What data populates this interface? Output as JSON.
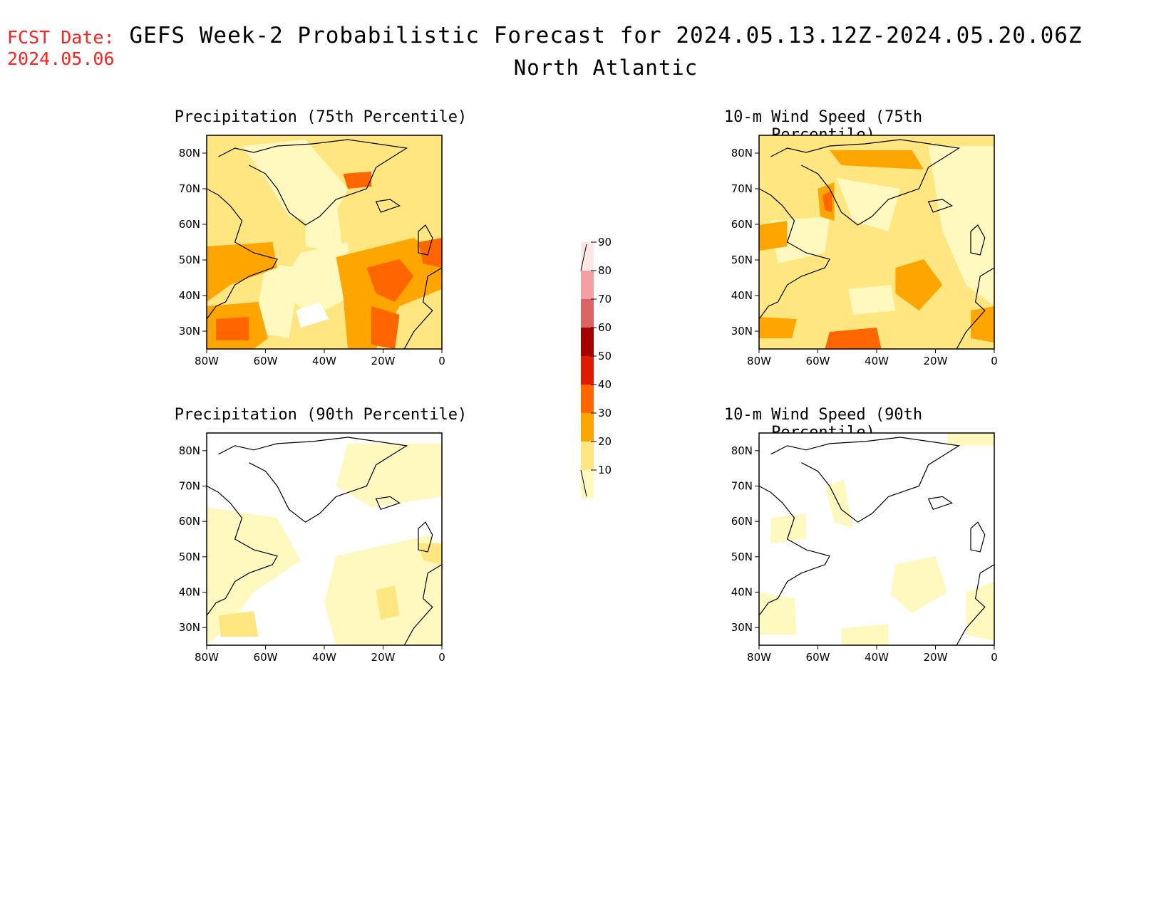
{
  "header": {
    "fcst_label": "FCST Date:",
    "fcst_date": "2024.05.06",
    "title": "GEFS Week-2 Probabilistic Forecast for 2024.05.13.12Z-2024.05.20.06Z",
    "region": "North Atlantic"
  },
  "panels": [
    {
      "title": "Precipitation (75th Percentile)",
      "field": "precip75"
    },
    {
      "title": "10-m Wind Speed (75th Percentile)",
      "field": "wind75"
    },
    {
      "title": "Precipitation (90th Percentile)",
      "field": "precip90"
    },
    {
      "title": "10-m Wind Speed (90th Percentile)",
      "field": "wind90"
    }
  ],
  "axes": {
    "lat_ticks": [
      "80N",
      "70N",
      "60N",
      "50N",
      "40N",
      "30N"
    ],
    "lon_ticks": [
      "80W",
      "60W",
      "40W",
      "20W",
      "0"
    ],
    "lat_values": [
      80,
      70,
      60,
      50,
      40,
      30
    ],
    "lon_values": [
      -80,
      -60,
      -40,
      -20,
      0
    ],
    "lat_range": [
      25,
      85
    ],
    "lon_range": [
      -80,
      0
    ]
  },
  "colorbar": {
    "levels": [
      10,
      20,
      30,
      40,
      50,
      60,
      70,
      80,
      90
    ],
    "labels": [
      "10",
      "20",
      "30",
      "40",
      "50",
      "60",
      "70",
      "80",
      "90"
    ],
    "colors": [
      "#fff9c0",
      "#ffe680",
      "#ffa500",
      "#ff6600",
      "#e01a00",
      "#a50000",
      "#dc6464",
      "#f4a0a0",
      "#fde6e6"
    ]
  }
}
